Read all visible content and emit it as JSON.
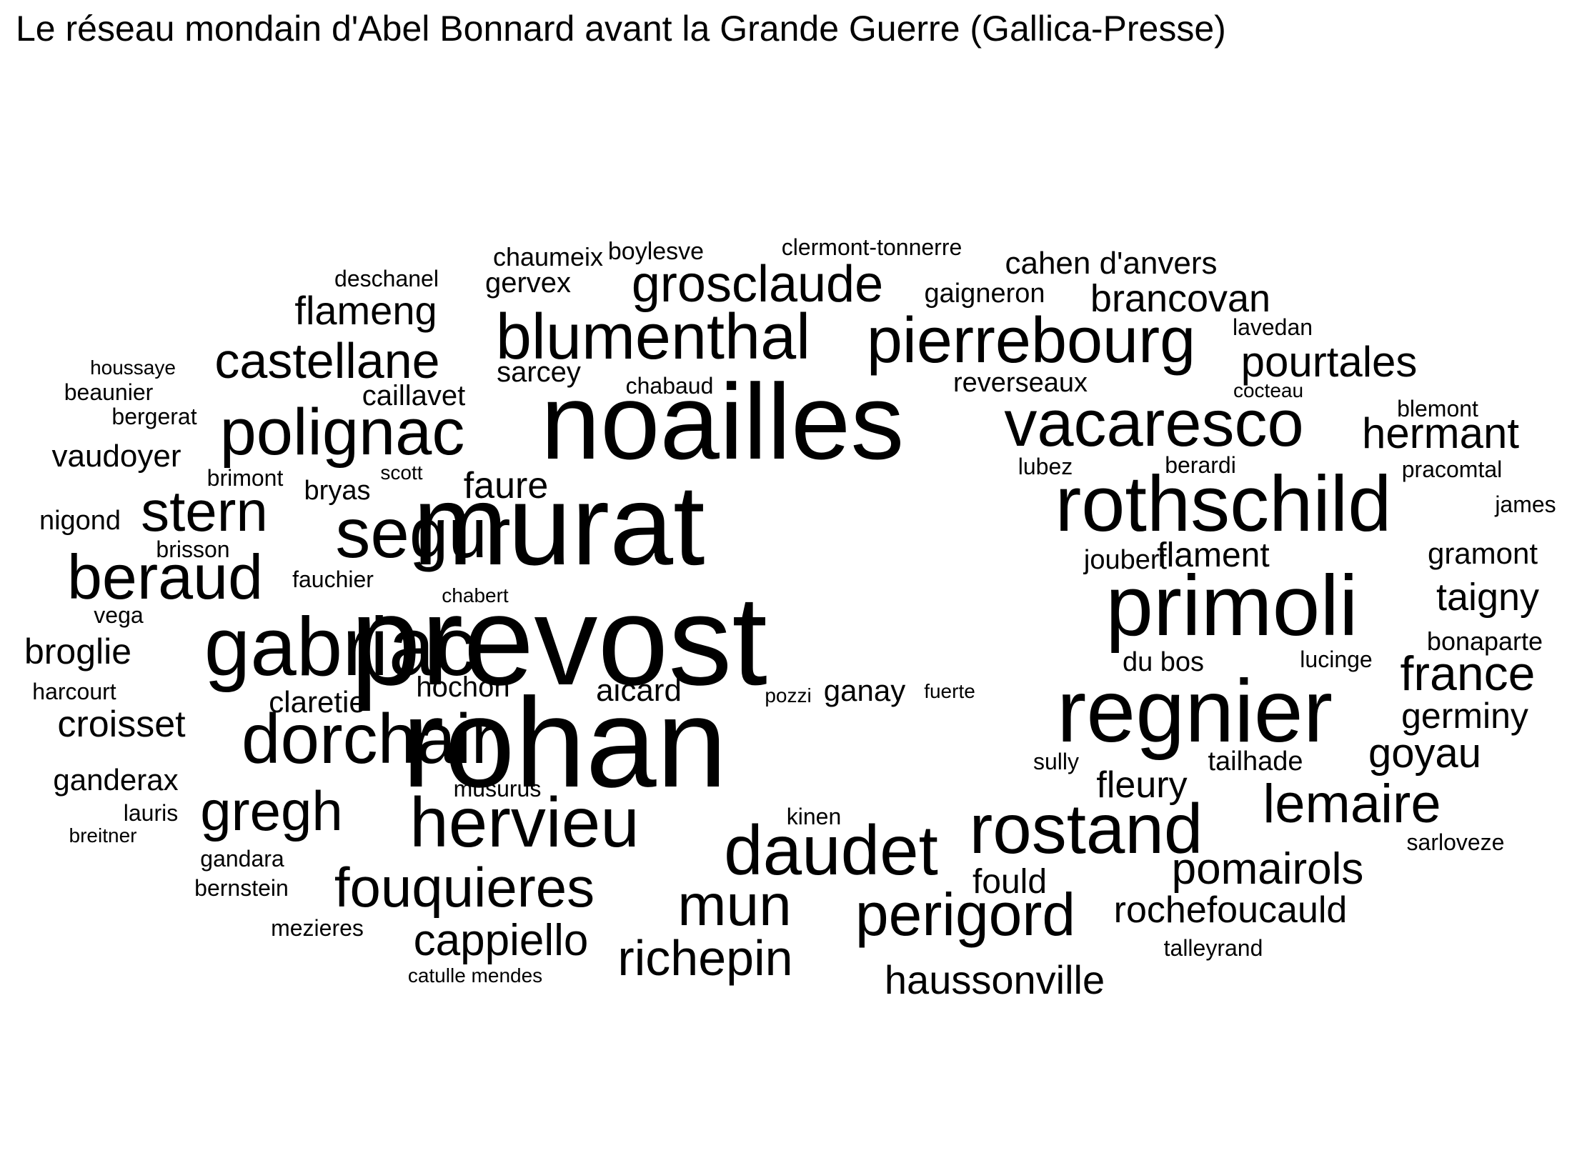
{
  "title": "Le réseau mondain d'Abel Bonnard avant la Grande Guerre (Gallica-Presse)",
  "text_color": "#000000",
  "background_color": "#ffffff",
  "words": [
    {
      "text": "prevost",
      "rank": 1
    },
    {
      "text": "rohan",
      "rank": 1
    },
    {
      "text": "murat",
      "rank": 2
    },
    {
      "text": "noailles",
      "rank": 3
    },
    {
      "text": "regnier",
      "rank": 4
    },
    {
      "text": "primoli",
      "rank": 5
    },
    {
      "text": "gabriac",
      "rank": 5
    },
    {
      "text": "rothschild",
      "rank": 5
    },
    {
      "text": "segur",
      "rank": 6
    },
    {
      "text": "dorchain",
      "rank": 6
    },
    {
      "text": "hervieu",
      "rank": 6
    },
    {
      "text": "daudet",
      "rank": 6
    },
    {
      "text": "rostand",
      "rank": 6
    },
    {
      "text": "polignac",
      "rank": 7
    },
    {
      "text": "vacaresco",
      "rank": 7
    },
    {
      "text": "blumenthal",
      "rank": 7
    },
    {
      "text": "pierrebourg",
      "rank": 7
    },
    {
      "text": "beraud",
      "rank": 7
    },
    {
      "text": "perigord",
      "rank": 7
    },
    {
      "text": "lemaire",
      "rank": 8
    },
    {
      "text": "stern",
      "rank": 8
    },
    {
      "text": "gregh",
      "rank": 8
    },
    {
      "text": "fouquieres",
      "rank": 8
    },
    {
      "text": "mun",
      "rank": 8
    },
    {
      "text": "castellane",
      "rank": 9
    },
    {
      "text": "grosclaude",
      "rank": 9
    },
    {
      "text": "richepin",
      "rank": 9
    },
    {
      "text": "france",
      "rank": 9
    },
    {
      "text": "pomairols",
      "rank": 10
    },
    {
      "text": "pourtales",
      "rank": 10
    },
    {
      "text": "goyau",
      "rank": 10
    },
    {
      "text": "cappiello",
      "rank": 10
    },
    {
      "text": "hermant",
      "rank": 10
    },
    {
      "text": "haussonville",
      "rank": 10
    },
    {
      "text": "fleury",
      "rank": 11
    },
    {
      "text": "brancovan",
      "rank": 11
    },
    {
      "text": "flameng",
      "rank": 11
    },
    {
      "text": "rochefoucauld",
      "rank": 11
    },
    {
      "text": "croisset",
      "rank": 11
    },
    {
      "text": "faure",
      "rank": 11
    },
    {
      "text": "taigny",
      "rank": 11
    },
    {
      "text": "broglie",
      "rank": 11
    },
    {
      "text": "germiny",
      "rank": 11
    },
    {
      "text": "fould",
      "rank": 12
    },
    {
      "text": "flament",
      "rank": 12
    },
    {
      "text": "cahen d'anvers",
      "rank": 12
    },
    {
      "text": "aicard",
      "rank": 12
    },
    {
      "text": "vaudoyer",
      "rank": 12
    },
    {
      "text": "gramont",
      "rank": 12
    },
    {
      "text": "ganderax",
      "rank": 12
    },
    {
      "text": "claretie",
      "rank": 12
    },
    {
      "text": "ganay",
      "rank": 12
    },
    {
      "text": "gervex",
      "rank": 13
    },
    {
      "text": "nigond",
      "rank": 13
    },
    {
      "text": "hochon",
      "rank": 13
    },
    {
      "text": "bonaparte",
      "rank": 13
    },
    {
      "text": "caillavet",
      "rank": 13
    },
    {
      "text": "reverseaux",
      "rank": 13
    },
    {
      "text": "sarcey",
      "rank": 13
    },
    {
      "text": "chaumeix",
      "rank": 13
    },
    {
      "text": "gaigneron",
      "rank": 13
    },
    {
      "text": "bryas",
      "rank": 13
    },
    {
      "text": "joubert",
      "rank": 13
    },
    {
      "text": "du bos",
      "rank": 13
    },
    {
      "text": "tailhade",
      "rank": 13
    },
    {
      "text": "clermont-tonnerre",
      "rank": 14
    },
    {
      "text": "boylesve",
      "rank": 14
    },
    {
      "text": "deschanel",
      "rank": 14
    },
    {
      "text": "chabaud",
      "rank": 14
    },
    {
      "text": "beaunier",
      "rank": 14
    },
    {
      "text": "bergerat",
      "rank": 14
    },
    {
      "text": "brimont",
      "rank": 14
    },
    {
      "text": "fauchier",
      "rank": 14
    },
    {
      "text": "vega",
      "rank": 14
    },
    {
      "text": "harcourt",
      "rank": 14
    },
    {
      "text": "musurus",
      "rank": 14
    },
    {
      "text": "lauris",
      "rank": 14
    },
    {
      "text": "kinen",
      "rank": 14
    },
    {
      "text": "gandara",
      "rank": 14
    },
    {
      "text": "bernstein",
      "rank": 14
    },
    {
      "text": "mezieres",
      "rank": 14
    },
    {
      "text": "talleyrand",
      "rank": 14
    },
    {
      "text": "sarloveze",
      "rank": 14
    },
    {
      "text": "pracomtal",
      "rank": 14
    },
    {
      "text": "james",
      "rank": 14
    },
    {
      "text": "lucinge",
      "rank": 14
    },
    {
      "text": "lubez",
      "rank": 14
    },
    {
      "text": "berardi",
      "rank": 14
    },
    {
      "text": "blemont",
      "rank": 14
    },
    {
      "text": "lavedan",
      "rank": 14
    },
    {
      "text": "sully",
      "rank": 14
    },
    {
      "text": "brisson",
      "rank": 14
    },
    {
      "text": "houssaye",
      "rank": 15
    },
    {
      "text": "cocteau",
      "rank": 15
    },
    {
      "text": "scott",
      "rank": 15
    },
    {
      "text": "chabert",
      "rank": 15
    },
    {
      "text": "pozzi",
      "rank": 15
    },
    {
      "text": "fuerte",
      "rank": 15
    },
    {
      "text": "breitner",
      "rank": 15
    },
    {
      "text": "catulle mendes",
      "rank": 15
    }
  ]
}
